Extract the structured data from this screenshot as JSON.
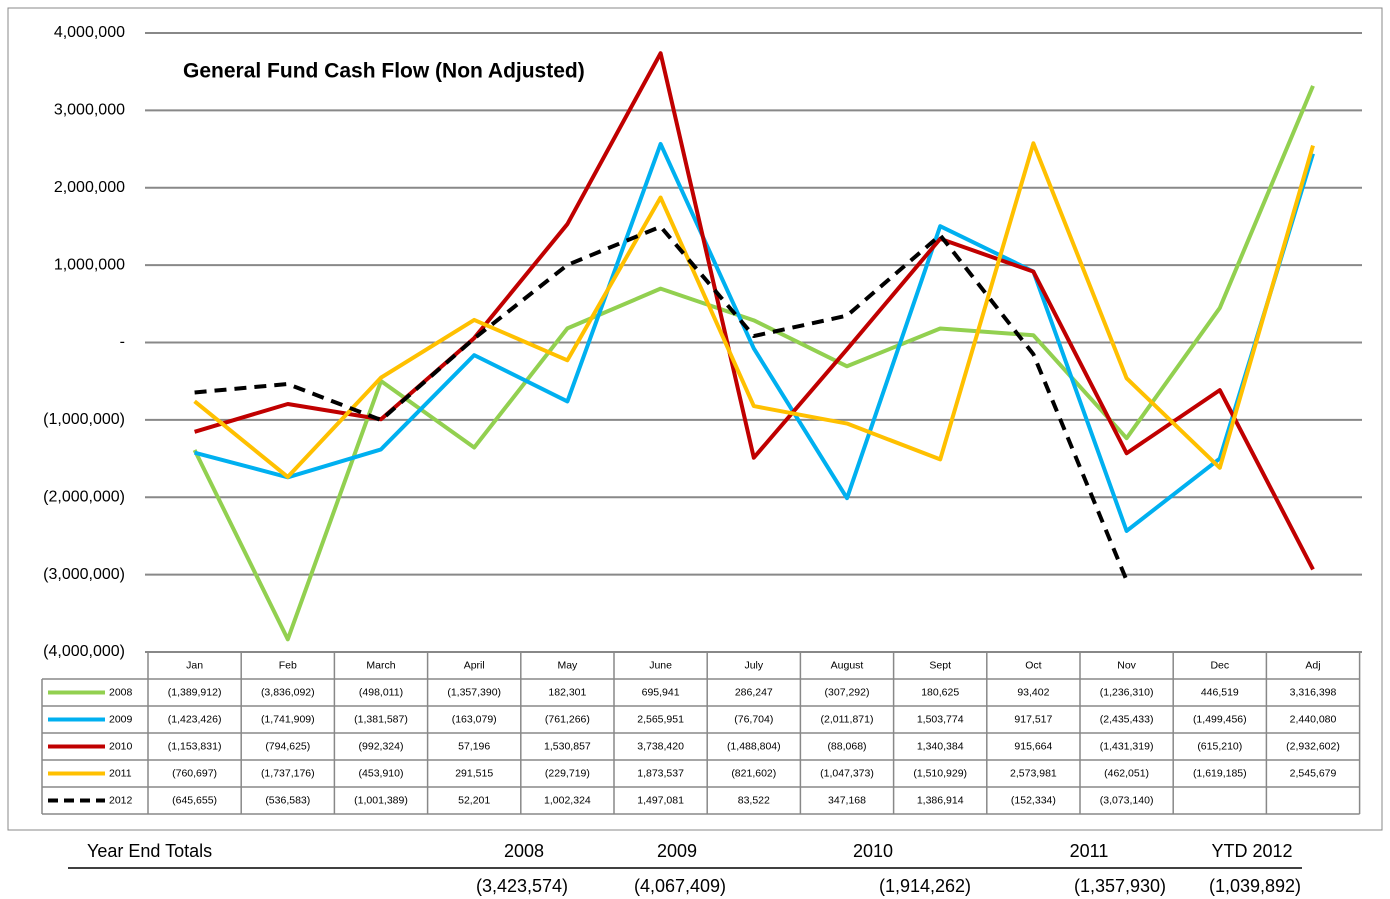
{
  "chart_data": {
    "type": "line",
    "title": "General Fund Cash Flow (Non Adjusted)",
    "categories": [
      "Jan",
      "Feb",
      "March",
      "April",
      "May",
      "June",
      "July",
      "August",
      "Sept",
      "Oct",
      "Nov",
      "Dec",
      "Adj"
    ],
    "series": [
      {
        "name": "2008",
        "color": "#92d050",
        "dashed": false,
        "values": [
          -1389912,
          -3836092,
          -498011,
          -1357390,
          182301,
          695941,
          286247,
          -307292,
          180625,
          93402,
          -1236310,
          446519,
          3316398
        ],
        "value_labels": [
          "(1,389,912)",
          "(3,836,092)",
          "(498,011)",
          "(1,357,390)",
          "182,301",
          "695,941",
          "286,247",
          "(307,292)",
          "180,625",
          "93,402",
          "(1,236,310)",
          "446,519",
          "3,316,398"
        ]
      },
      {
        "name": "2009",
        "color": "#00b0f0",
        "dashed": false,
        "values": [
          -1423426,
          -1741909,
          -1381587,
          -163079,
          -761266,
          2565951,
          -76704,
          -2011871,
          1503774,
          917517,
          -2435433,
          -1499456,
          2440080
        ],
        "value_labels": [
          "(1,423,426)",
          "(1,741,909)",
          "(1,381,587)",
          "(163,079)",
          "(761,266)",
          "2,565,951",
          "(76,704)",
          "(2,011,871)",
          "1,503,774",
          "917,517",
          "(2,435,433)",
          "(1,499,456)",
          "2,440,080"
        ]
      },
      {
        "name": "2010",
        "color": "#c00000",
        "dashed": false,
        "values": [
          -1153831,
          -794625,
          -992324,
          57196,
          1530857,
          3738420,
          -1488804,
          -88068,
          1340384,
          915664,
          -1431319,
          -615210,
          -2932602
        ],
        "value_labels": [
          "(1,153,831)",
          "(794,625)",
          "(992,324)",
          "57,196",
          "1,530,857",
          "3,738,420",
          "(1,488,804)",
          "(88,068)",
          "1,340,384",
          "915,664",
          "(1,431,319)",
          "(615,210)",
          "(2,932,602)"
        ]
      },
      {
        "name": "2011",
        "color": "#ffc000",
        "dashed": false,
        "values": [
          -760697,
          -1737176,
          -453910,
          291515,
          -229719,
          1873537,
          -821602,
          -1047373,
          -1510929,
          2573981,
          -462051,
          -1619185,
          2545679
        ],
        "value_labels": [
          "(760,697)",
          "(1,737,176)",
          "(453,910)",
          "291,515",
          "(229,719)",
          "1,873,537",
          "(821,602)",
          "(1,047,373)",
          "(1,510,929)",
          "2,573,981",
          "(462,051)",
          "(1,619,185)",
          "2,545,679"
        ]
      },
      {
        "name": "2012",
        "color": "#000000",
        "dashed": true,
        "values": [
          -645655,
          -536583,
          -1001389,
          52201,
          1002324,
          1497081,
          83522,
          347168,
          1386914,
          -152334,
          -3073140,
          null,
          null
        ],
        "value_labels": [
          "(645,655)",
          "(536,583)",
          "(1,001,389)",
          "52,201",
          "1,002,324",
          "1,497,081",
          "83,522",
          "347,168",
          "1,386,914",
          "(152,334)",
          "(3,073,140)",
          null,
          null
        ]
      }
    ],
    "ylim": [
      -4000000,
      4000000
    ],
    "yticks": [
      {
        "value": 4000000,
        "label": "4,000,000"
      },
      {
        "value": 3000000,
        "label": "3,000,000"
      },
      {
        "value": 2000000,
        "label": "2,000,000"
      },
      {
        "value": 1000000,
        "label": "1,000,000"
      },
      {
        "value": 0,
        "label": "-"
      },
      {
        "value": -1000000,
        "label": "(1,000,000)"
      },
      {
        "value": -2000000,
        "label": "(2,000,000)"
      },
      {
        "value": -3000000,
        "label": "(3,000,000)"
      },
      {
        "value": -4000000,
        "label": "(4,000,000)"
      }
    ],
    "grid": true
  },
  "year_end_totals": {
    "title": "Year End Totals",
    "columns": [
      "2008",
      "2009",
      "2010",
      "2011",
      "YTD 2012"
    ],
    "values": [
      -3423574,
      -4067409,
      -1914262,
      -1357930,
      -1039892
    ],
    "value_labels": [
      "(3,423,574)",
      "(4,067,409)",
      "(1,914,262)",
      "(1,357,930)",
      "(1,039,892)"
    ]
  }
}
